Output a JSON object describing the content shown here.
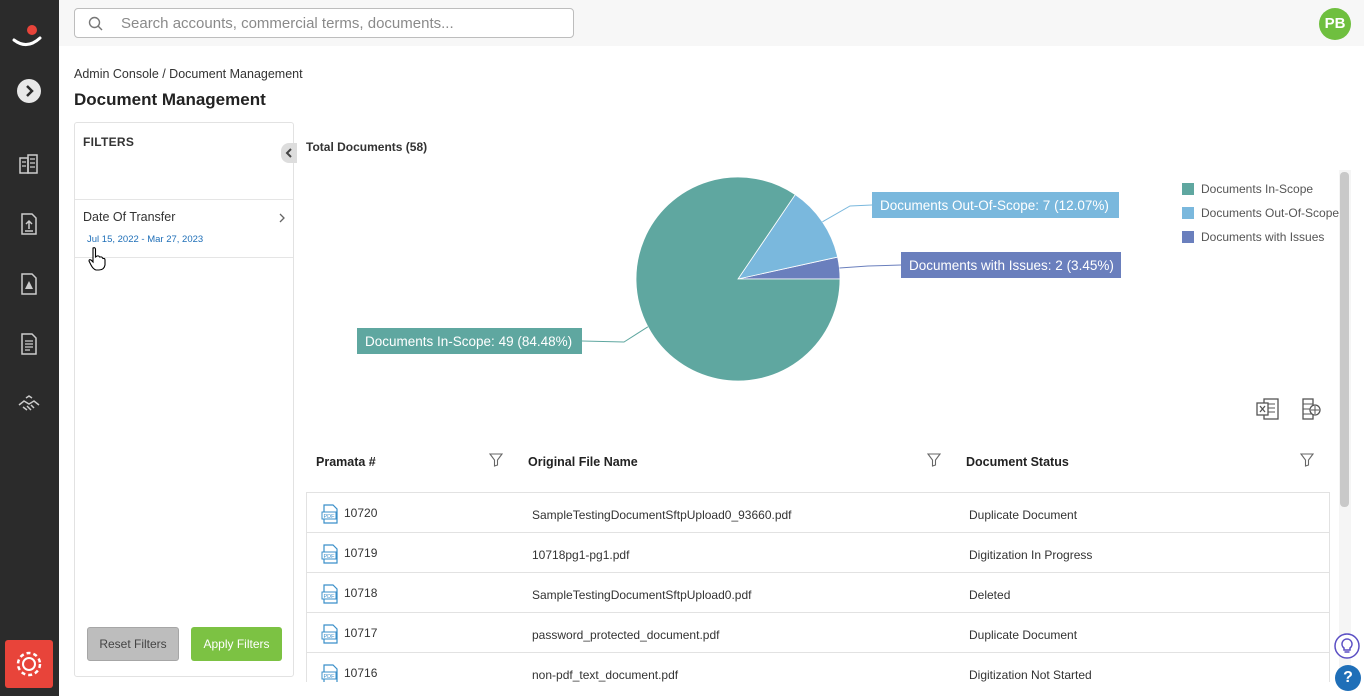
{
  "search": {
    "placeholder": "Search accounts, commercial terms, documents..."
  },
  "user": {
    "initials": "PB"
  },
  "breadcrumb": "Admin Console / Document Management",
  "page_title": "Document Management",
  "filters": {
    "title": "FILTERS",
    "date_filter": {
      "label": "Date Of Transfer",
      "value": "Jul 15, 2022 - Mar 27, 2023"
    },
    "reset_label": "Reset Filters",
    "apply_label": "Apply Filters"
  },
  "chart_data": {
    "type": "pie",
    "title": "Total Documents (58)",
    "slices": [
      {
        "name": "Documents In-Scope",
        "value": 49,
        "percent": 84.48,
        "color": "#5fa7a0",
        "label": "Documents In-Scope: 49 (84.48%)"
      },
      {
        "name": "Documents Out-Of-Scope",
        "value": 7,
        "percent": 12.07,
        "color": "#7ab8dd",
        "label": "Documents Out-Of-Scope: 7 (12.07%)"
      },
      {
        "name": "Documents with Issues",
        "value": 2,
        "percent": 3.45,
        "color": "#6a7fbd",
        "label": "Documents with Issues: 2 (3.45%)"
      }
    ],
    "legend_position": "right"
  },
  "legend": [
    {
      "label": "Documents In-Scope",
      "color": "#5fa7a0"
    },
    {
      "label": "Documents Out-Of-Scope",
      "color": "#7ab8dd"
    },
    {
      "label": "Documents with Issues",
      "color": "#6a7fbd"
    }
  ],
  "table": {
    "columns": [
      "Pramata #",
      "Original File Name",
      "Document Status"
    ],
    "rows": [
      {
        "id": "10720",
        "file": "SampleTestingDocumentSftpUpload0_93660.pdf",
        "status": "Duplicate Document"
      },
      {
        "id": "10719",
        "file": "10718pg1-pg1.pdf",
        "status": "Digitization In Progress"
      },
      {
        "id": "10718",
        "file": "SampleTestingDocumentSftpUpload0.pdf",
        "status": "Deleted"
      },
      {
        "id": "10717",
        "file": "password_protected_document.pdf",
        "status": "Duplicate Document"
      },
      {
        "id": "10716",
        "file": "non-pdf_text_document.pdf",
        "status": "Digitization Not Started"
      }
    ]
  },
  "icons": {
    "rail": [
      "logo-icon",
      "expand-icon",
      "accounts-icon",
      "upload-icon",
      "alert-document-icon",
      "document-list-icon",
      "handshake-icon",
      "settings-icon"
    ],
    "tools": [
      "export-excel-icon",
      "column-settings-icon"
    ],
    "help": "?"
  },
  "colors": {
    "accent_green": "#7cc243",
    "link_blue": "#1f6fb8",
    "settings_red": "#e8443a"
  }
}
